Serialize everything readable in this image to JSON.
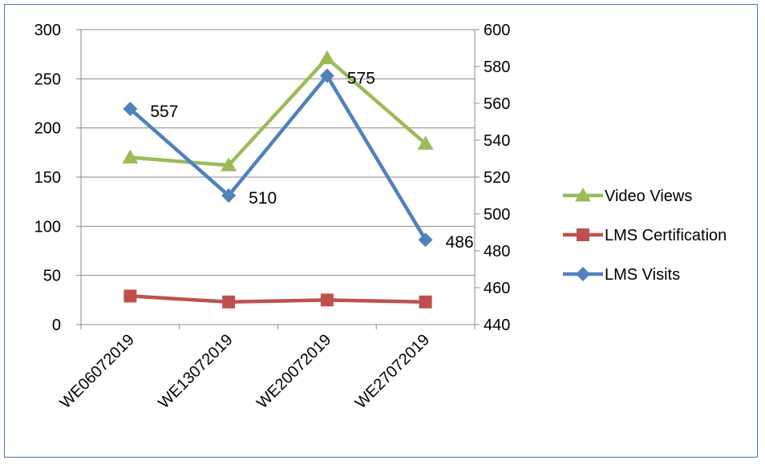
{
  "chart_data": {
    "type": "line",
    "categories": [
      "WE06072019",
      "WE13072019",
      "WE20072019",
      "WE27072019"
    ],
    "y_left": {
      "ylim": [
        0,
        300
      ],
      "ticks": [
        0,
        50,
        100,
        150,
        200,
        250,
        300
      ]
    },
    "y_right": {
      "ylim": [
        440,
        600
      ],
      "ticks": [
        440,
        460,
        480,
        500,
        520,
        540,
        560,
        580,
        600
      ]
    },
    "grid": true,
    "legend_position": "right",
    "series": [
      {
        "name": "Video Views",
        "axis": "left",
        "values": [
          170,
          162,
          271,
          184
        ],
        "color": "#9bbb59",
        "marker": "triangle",
        "show_labels": false
      },
      {
        "name": "LMS Certification",
        "axis": "left",
        "values": [
          29,
          23,
          25,
          23
        ],
        "color": "#c0504d",
        "marker": "square",
        "show_labels": false
      },
      {
        "name": "LMS Visits",
        "axis": "right",
        "values": [
          557,
          510,
          575,
          486
        ],
        "color": "#4f81bd",
        "marker": "diamond",
        "show_labels": true
      }
    ],
    "legend_order": [
      "Video Views",
      "LMS Certification",
      "LMS Visits"
    ]
  }
}
